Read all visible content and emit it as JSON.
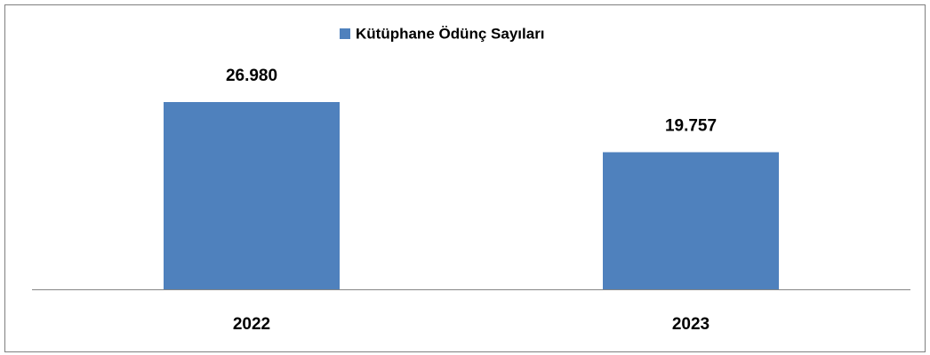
{
  "chart_data": {
    "type": "bar",
    "categories": [
      "2022",
      "2023"
    ],
    "series": [
      {
        "name": "Kütüphane Ödünç Sayıları",
        "color": "#4f81bd",
        "values": [
          26980,
          19757
        ],
        "value_labels": [
          "26.980",
          "19.757"
        ]
      }
    ],
    "legend": "top"
  }
}
